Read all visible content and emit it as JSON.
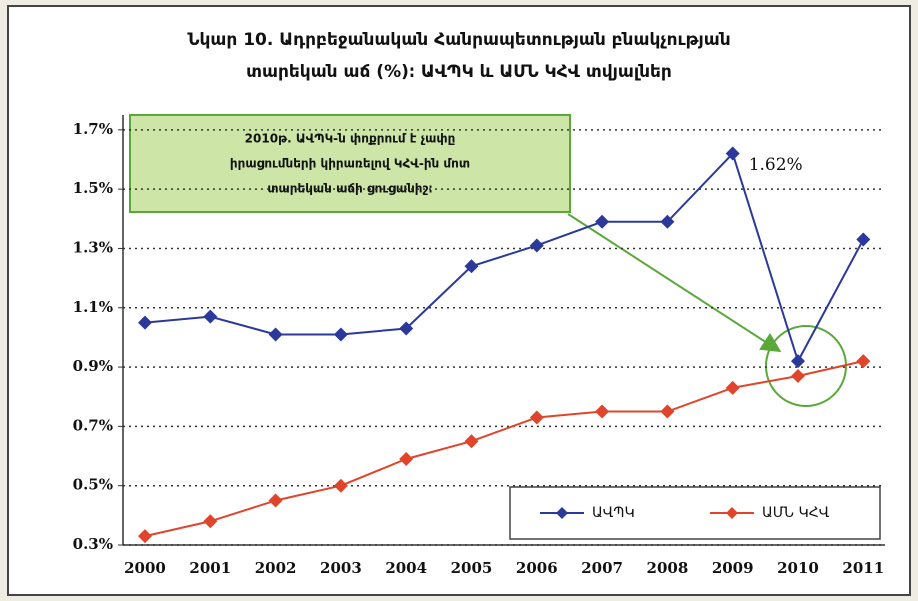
{
  "chart_data": {
    "type": "line",
    "title": [
      "Նկար 10. Ադրբեջանական Հանրապետության բնակչության",
      "տարեկան աճ (%)։ ԱՎՊԿ և ԱՄՆ ԿՀՎ տվյալներ"
    ],
    "annotation": [
      "2010թ. ԱՎՊԿ-ն փոքրում է չափը",
      "իրացումների կիրառելով ԿՀՎ-ին մոտ",
      "տարեկան աճի ցուցանիշ։"
    ],
    "categories": [
      "2000",
      "2001",
      "2002",
      "2003",
      "2004",
      "2005",
      "2006",
      "2007",
      "2008",
      "2009",
      "2010",
      "2011"
    ],
    "series": [
      {
        "name": "ԱՎՊԿ",
        "color": "#2b3a9a",
        "values": [
          1.05,
          1.07,
          1.01,
          1.01,
          1.03,
          1.24,
          1.31,
          1.39,
          1.39,
          1.62,
          0.92,
          1.33
        ],
        "value_labels": [
          null,
          null,
          null,
          null,
          null,
          null,
          null,
          null,
          null,
          "1.62%",
          null,
          null
        ]
      },
      {
        "name": "ԱՄՆ ԿՀՎ",
        "color": "#e0452c",
        "values": [
          0.33,
          0.38,
          0.45,
          0.5,
          0.59,
          0.65,
          0.73,
          0.75,
          0.75,
          0.83,
          0.87,
          0.92
        ]
      }
    ],
    "ylim": [
      0.3,
      1.75
    ],
    "yticks": [
      {
        "value": 0.3,
        "label": "0.3%"
      },
      {
        "value": 0.5,
        "label": "0.5%"
      },
      {
        "value": 0.7,
        "label": "0.7%"
      },
      {
        "value": 0.9,
        "label": "0.9%"
      },
      {
        "value": 1.1,
        "label": "1.1%"
      },
      {
        "value": 1.3,
        "label": "1.3%"
      },
      {
        "value": 1.5,
        "label": "1.5%"
      },
      {
        "value": 1.7,
        "label": "1.7%"
      }
    ],
    "grid": true,
    "legend": "lower right"
  }
}
